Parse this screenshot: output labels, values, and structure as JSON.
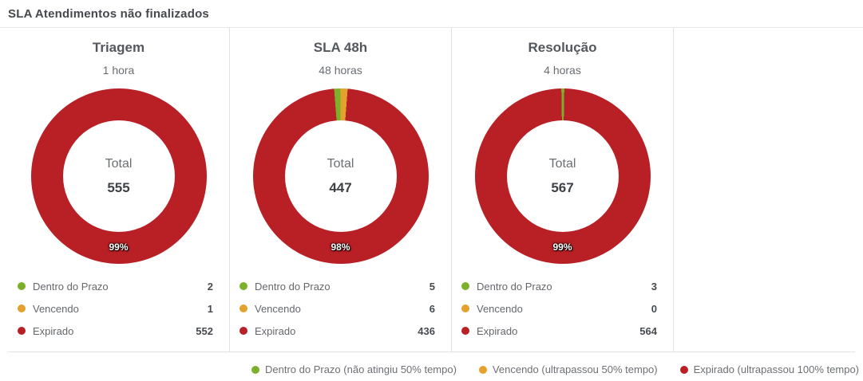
{
  "page_title": "SLA Atendimentos não finalizados",
  "colors": {
    "green": "#7cb02a",
    "orange": "#e2a22d",
    "red": "#b82025"
  },
  "chart_data": [
    {
      "type": "pie",
      "title": "Triagem",
      "subtitle": "1 hora",
      "center_label": "Total",
      "total": 555,
      "percent_label": "99%",
      "categories": [
        "Dentro do Prazo",
        "Vencendo",
        "Expirado"
      ],
      "values": [
        2,
        1,
        552
      ],
      "colors": [
        "#7cb02a",
        "#e2a22d",
        "#b82025"
      ],
      "legend_position": "bottom"
    },
    {
      "type": "pie",
      "title": "SLA 48h",
      "subtitle": "48 horas",
      "center_label": "Total",
      "total": 447,
      "percent_label": "98%",
      "categories": [
        "Dentro do Prazo",
        "Vencendo",
        "Expirado"
      ],
      "values": [
        5,
        6,
        436
      ],
      "colors": [
        "#7cb02a",
        "#e2a22d",
        "#b82025"
      ],
      "legend_position": "bottom"
    },
    {
      "type": "pie",
      "title": "Resolução",
      "subtitle": "4 horas",
      "center_label": "Total",
      "total": 567,
      "percent_label": "99%",
      "categories": [
        "Dentro do Prazo",
        "Vencendo",
        "Expirado"
      ],
      "values": [
        3,
        0,
        564
      ],
      "colors": [
        "#7cb02a",
        "#e2a22d",
        "#b82025"
      ],
      "legend_position": "bottom"
    }
  ],
  "bottom_legend": [
    {
      "label": "Dentro do Prazo (não atingiu 50% tempo)",
      "color": "green"
    },
    {
      "label": "Vencendo (ultrapassou 50% tempo)",
      "color": "orange"
    },
    {
      "label": "Expirado (ultrapassou 100% tempo)",
      "color": "red"
    }
  ]
}
